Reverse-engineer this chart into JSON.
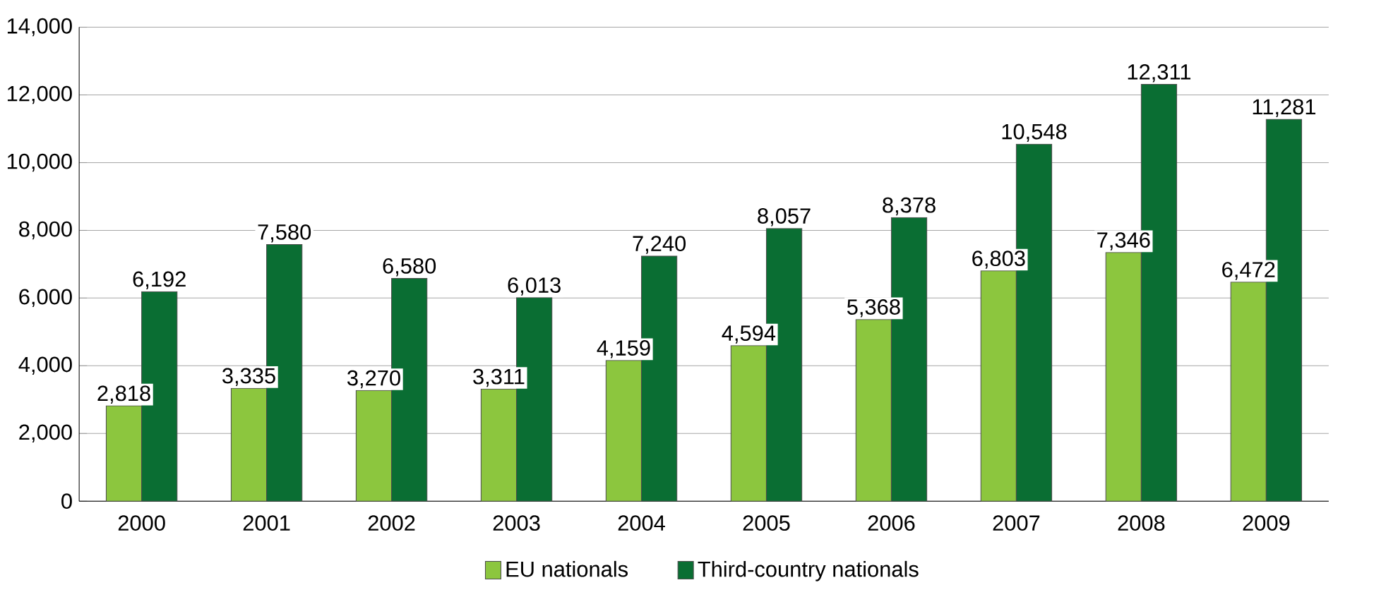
{
  "chart_data": {
    "type": "bar",
    "categories": [
      "2000",
      "2001",
      "2002",
      "2003",
      "2004",
      "2005",
      "2006",
      "2007",
      "2008",
      "2009"
    ],
    "series": [
      {
        "name": "EU nationals",
        "color": "#8cc63e",
        "values": [
          2818,
          3335,
          3270,
          3311,
          4159,
          4594,
          5368,
          6803,
          7346,
          6472
        ],
        "value_labels": [
          "2,818",
          "3,335",
          "3,270",
          "3,311",
          "4,159",
          "4,594",
          "5,368",
          "6,803",
          "7,346",
          "6,472"
        ]
      },
      {
        "name": "Third-country nationals",
        "color": "#0a6e33",
        "values": [
          6192,
          7580,
          6580,
          6013,
          7240,
          8057,
          8378,
          10548,
          12311,
          11281
        ],
        "value_labels": [
          "6,192",
          "7,580",
          "6,580",
          "6,013",
          "7,240",
          "8,057",
          "8,378",
          "10,548",
          "12,311",
          "11,281"
        ]
      }
    ],
    "ylim": [
      0,
      14000
    ],
    "yticks": [
      {
        "value": 0,
        "label": "0"
      },
      {
        "value": 2000,
        "label": "2,000"
      },
      {
        "value": 4000,
        "label": "4,000"
      },
      {
        "value": 6000,
        "label": "6,000"
      },
      {
        "value": 8000,
        "label": "8,000"
      },
      {
        "value": 10000,
        "label": "10,000"
      },
      {
        "value": 12000,
        "label": "12,000"
      },
      {
        "value": 14000,
        "label": "14,000"
      }
    ],
    "grid": "y",
    "legend": "bottom"
  }
}
